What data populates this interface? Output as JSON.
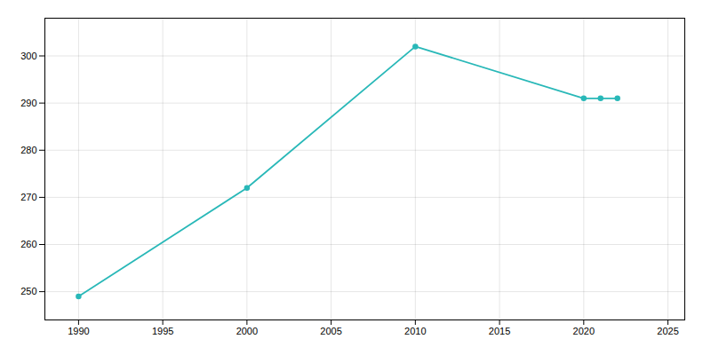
{
  "chart_data": {
    "type": "line",
    "x": [
      1990,
      2000,
      2010,
      2020,
      2021,
      2022
    ],
    "values": [
      249,
      272,
      302,
      291,
      291,
      291
    ],
    "color": "#29B8B8",
    "marker": "circle",
    "xlim": [
      1988,
      2026
    ],
    "ylim": [
      244,
      308
    ],
    "xticks": [
      1990,
      1995,
      2000,
      2005,
      2010,
      2015,
      2020,
      2025
    ],
    "yticks": [
      250,
      260,
      270,
      280,
      290,
      300
    ],
    "grid": true
  }
}
